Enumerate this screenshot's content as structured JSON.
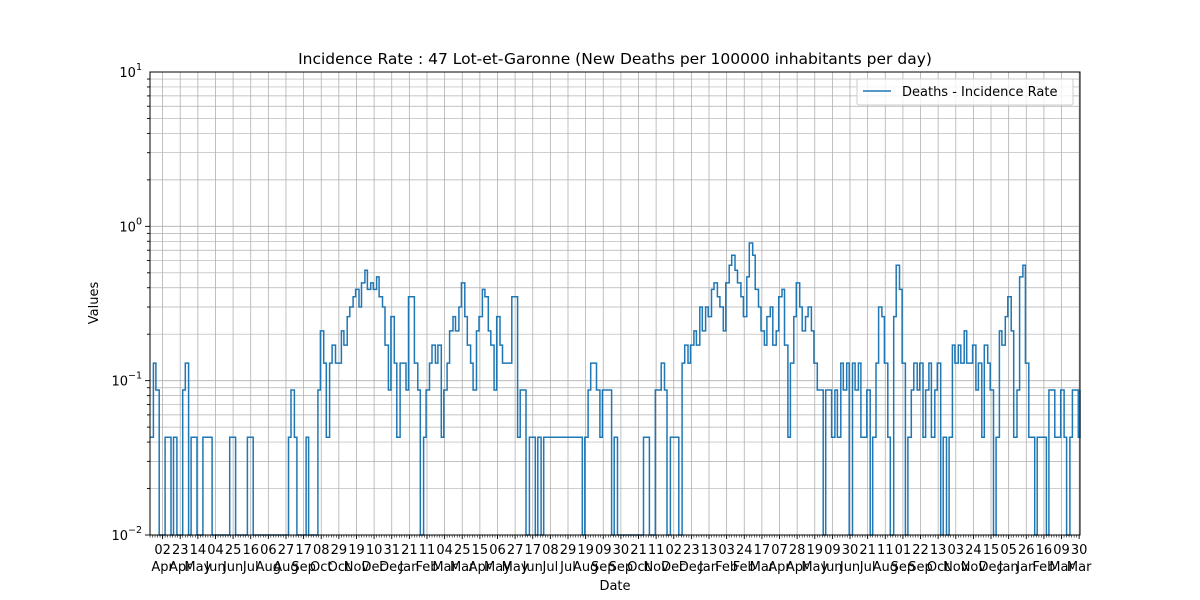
{
  "chart_data": {
    "type": "line",
    "title": "Incidence Rate : 47 Lot-et-Garonne (New Deaths per 100000 inhabitants per day)",
    "xlabel": "Date",
    "ylabel": "Values",
    "yscale": "log",
    "ylim": [
      0.01,
      10
    ],
    "xlim": [
      "2020-03-18",
      "2023-03-31"
    ],
    "grid": true,
    "legend_position": "top-right",
    "line_color": "#1f77b4",
    "y_ticks": [
      {
        "value": 0.01,
        "base": "10",
        "exp": "−2"
      },
      {
        "value": 0.1,
        "base": "10",
        "exp": "−1"
      },
      {
        "value": 1,
        "base": "10",
        "exp": "0"
      },
      {
        "value": 10,
        "base": "10",
        "exp": "1"
      }
    ],
    "x_ticks": [
      {
        "date": "2020-04-02",
        "day": "02",
        "month": "Apr"
      },
      {
        "date": "2020-04-23",
        "day": "23",
        "month": "Apr"
      },
      {
        "date": "2020-05-14",
        "day": "14",
        "month": "May"
      },
      {
        "date": "2020-06-04",
        "day": "04",
        "month": "Jun"
      },
      {
        "date": "2020-06-25",
        "day": "25",
        "month": "Jun"
      },
      {
        "date": "2020-07-16",
        "day": "16",
        "month": "Jul"
      },
      {
        "date": "2020-08-06",
        "day": "06",
        "month": "Aug"
      },
      {
        "date": "2020-08-27",
        "day": "27",
        "month": "Aug"
      },
      {
        "date": "2020-09-17",
        "day": "17",
        "month": "Sep"
      },
      {
        "date": "2020-10-08",
        "day": "08",
        "month": "Oct"
      },
      {
        "date": "2020-10-29",
        "day": "29",
        "month": "Oct"
      },
      {
        "date": "2020-11-19",
        "day": "19",
        "month": "Nov"
      },
      {
        "date": "2020-12-10",
        "day": "10",
        "month": "Dec"
      },
      {
        "date": "2020-12-31",
        "day": "31",
        "month": "Dec"
      },
      {
        "date": "2021-01-21",
        "day": "21",
        "month": "Jan"
      },
      {
        "date": "2021-02-11",
        "day": "11",
        "month": "Feb"
      },
      {
        "date": "2021-03-04",
        "day": "04",
        "month": "Mar"
      },
      {
        "date": "2021-03-25",
        "day": "25",
        "month": "Mar"
      },
      {
        "date": "2021-04-15",
        "day": "15",
        "month": "Apr"
      },
      {
        "date": "2021-05-06",
        "day": "06",
        "month": "May"
      },
      {
        "date": "2021-05-27",
        "day": "27",
        "month": "May"
      },
      {
        "date": "2021-06-17",
        "day": "17",
        "month": "Jun"
      },
      {
        "date": "2021-07-08",
        "day": "08",
        "month": "Jul"
      },
      {
        "date": "2021-07-29",
        "day": "29",
        "month": "Jul"
      },
      {
        "date": "2021-08-19",
        "day": "19",
        "month": "Aug"
      },
      {
        "date": "2021-09-09",
        "day": "09",
        "month": "Sep"
      },
      {
        "date": "2021-09-30",
        "day": "30",
        "month": "Sep"
      },
      {
        "date": "2021-10-21",
        "day": "21",
        "month": "Oct"
      },
      {
        "date": "2021-11-11",
        "day": "11",
        "month": "Nov"
      },
      {
        "date": "2021-12-02",
        "day": "02",
        "month": "Dec"
      },
      {
        "date": "2021-12-23",
        "day": "23",
        "month": "Dec"
      },
      {
        "date": "2022-01-13",
        "day": "13",
        "month": "Jan"
      },
      {
        "date": "2022-02-03",
        "day": "03",
        "month": "Feb"
      },
      {
        "date": "2022-02-24",
        "day": "24",
        "month": "Feb"
      },
      {
        "date": "2022-03-17",
        "day": "17",
        "month": "Mar"
      },
      {
        "date": "2022-04-07",
        "day": "07",
        "month": "Apr"
      },
      {
        "date": "2022-04-28",
        "day": "28",
        "month": "Apr"
      },
      {
        "date": "2022-05-19",
        "day": "19",
        "month": "May"
      },
      {
        "date": "2022-06-09",
        "day": "09",
        "month": "Jun"
      },
      {
        "date": "2022-06-30",
        "day": "30",
        "month": "Jun"
      },
      {
        "date": "2022-07-21",
        "day": "21",
        "month": "Jul"
      },
      {
        "date": "2022-08-11",
        "day": "11",
        "month": "Aug"
      },
      {
        "date": "2022-09-01",
        "day": "01",
        "month": "Sep"
      },
      {
        "date": "2022-09-22",
        "day": "22",
        "month": "Sep"
      },
      {
        "date": "2022-10-13",
        "day": "13",
        "month": "Oct"
      },
      {
        "date": "2022-11-03",
        "day": "03",
        "month": "Nov"
      },
      {
        "date": "2022-11-24",
        "day": "24",
        "month": "Nov"
      },
      {
        "date": "2022-12-15",
        "day": "15",
        "month": "Dec"
      },
      {
        "date": "2023-01-05",
        "day": "05",
        "month": "Jan"
      },
      {
        "date": "2023-01-26",
        "day": "26",
        "month": "Jan"
      },
      {
        "date": "2023-02-16",
        "day": "16",
        "month": "Feb"
      },
      {
        "date": "2023-03-09",
        "day": "09",
        "month": "Mar"
      },
      {
        "date": "2023-03-30",
        "day": "30",
        "month": "Mar"
      }
    ],
    "series": [
      {
        "name": "Deaths - Incidence Rate",
        "x": [
          "2020-03-18",
          "2020-03-22",
          "2020-03-25",
          "2020-03-29",
          "2020-04-05",
          "2020-04-08",
          "2020-04-12",
          "2020-04-15",
          "2020-04-19",
          "2020-04-26",
          "2020-04-29",
          "2020-05-03",
          "2020-05-06",
          "2020-05-10",
          "2020-05-13",
          "2020-05-17",
          "2020-05-20",
          "2020-05-24",
          "2020-05-31",
          "2020-06-21",
          "2020-06-24",
          "2020-06-28",
          "2020-07-12",
          "2020-07-15",
          "2020-07-19",
          "2020-08-30",
          "2020-09-02",
          "2020-09-06",
          "2020-09-09",
          "2020-09-13",
          "2020-09-20",
          "2020-09-23",
          "2020-10-04",
          "2020-10-07",
          "2020-10-11",
          "2020-10-14",
          "2020-10-18",
          "2020-10-21",
          "2020-10-25",
          "2020-10-28",
          "2020-11-01",
          "2020-11-04",
          "2020-11-08",
          "2020-11-11",
          "2020-11-15",
          "2020-11-18",
          "2020-11-22",
          "2020-11-25",
          "2020-11-29",
          "2020-12-02",
          "2020-12-06",
          "2020-12-09",
          "2020-12-13",
          "2020-12-16",
          "2020-12-20",
          "2020-12-23",
          "2020-12-27",
          "2020-12-30",
          "2021-01-03",
          "2021-01-06",
          "2021-01-10",
          "2021-01-13",
          "2021-01-17",
          "2021-01-20",
          "2021-01-24",
          "2021-01-27",
          "2021-01-31",
          "2021-02-03",
          "2021-02-07",
          "2021-02-10",
          "2021-02-14",
          "2021-02-17",
          "2021-02-21",
          "2021-02-24",
          "2021-02-28",
          "2021-03-03",
          "2021-03-07",
          "2021-03-10",
          "2021-03-14",
          "2021-03-17",
          "2021-03-21",
          "2021-03-24",
          "2021-03-28",
          "2021-03-31",
          "2021-04-04",
          "2021-04-07",
          "2021-04-11",
          "2021-04-14",
          "2021-04-18",
          "2021-04-21",
          "2021-04-25",
          "2021-04-28",
          "2021-05-02",
          "2021-05-05",
          "2021-05-09",
          "2021-05-12",
          "2021-05-16",
          "2021-05-19",
          "2021-05-23",
          "2021-05-26",
          "2021-05-30",
          "2021-06-02",
          "2021-06-06",
          "2021-06-09",
          "2021-06-13",
          "2021-06-16",
          "2021-06-20",
          "2021-06-23",
          "2021-06-27",
          "2021-06-30",
          "2021-08-15",
          "2021-08-18",
          "2021-08-22",
          "2021-08-25",
          "2021-08-29",
          "2021-09-01",
          "2021-09-05",
          "2021-09-08",
          "2021-09-12",
          "2021-09-19",
          "2021-09-22",
          "2021-09-26",
          "2021-10-24",
          "2021-10-27",
          "2021-10-31",
          "2021-11-03",
          "2021-11-07",
          "2021-11-10",
          "2021-11-14",
          "2021-11-17",
          "2021-11-21",
          "2021-11-24",
          "2021-11-28",
          "2021-12-01",
          "2021-12-05",
          "2021-12-08",
          "2021-12-12",
          "2021-12-15",
          "2021-12-19",
          "2021-12-22",
          "2021-12-26",
          "2021-12-29",
          "2022-01-02",
          "2022-01-05",
          "2022-01-09",
          "2022-01-12",
          "2022-01-16",
          "2022-01-19",
          "2022-01-23",
          "2022-01-26",
          "2022-01-30",
          "2022-02-02",
          "2022-02-06",
          "2022-02-09",
          "2022-02-13",
          "2022-02-16",
          "2022-02-20",
          "2022-02-23",
          "2022-02-27",
          "2022-03-02",
          "2022-03-06",
          "2022-03-09",
          "2022-03-13",
          "2022-03-16",
          "2022-03-20",
          "2022-03-23",
          "2022-03-27",
          "2022-03-30",
          "2022-04-03",
          "2022-04-06",
          "2022-04-10",
          "2022-04-13",
          "2022-04-17",
          "2022-04-20",
          "2022-04-24",
          "2022-04-27",
          "2022-05-01",
          "2022-05-04",
          "2022-05-08",
          "2022-05-11",
          "2022-05-15",
          "2022-05-18",
          "2022-05-22",
          "2022-05-25",
          "2022-05-29",
          "2022-06-01",
          "2022-06-05",
          "2022-06-08",
          "2022-06-12",
          "2022-06-15",
          "2022-06-19",
          "2022-06-22",
          "2022-06-26",
          "2022-06-29",
          "2022-07-03",
          "2022-07-06",
          "2022-07-10",
          "2022-07-13",
          "2022-07-17",
          "2022-07-20",
          "2022-07-24",
          "2022-07-27",
          "2022-07-31",
          "2022-08-03",
          "2022-08-07",
          "2022-08-10",
          "2022-08-14",
          "2022-08-17",
          "2022-08-21",
          "2022-08-24",
          "2022-08-28",
          "2022-08-31",
          "2022-09-04",
          "2022-09-07",
          "2022-09-11",
          "2022-09-14",
          "2022-09-18",
          "2022-09-21",
          "2022-09-25",
          "2022-09-28",
          "2022-10-02",
          "2022-10-05",
          "2022-10-09",
          "2022-10-12",
          "2022-10-16",
          "2022-10-19",
          "2022-10-23",
          "2022-10-26",
          "2022-10-30",
          "2022-11-02",
          "2022-11-06",
          "2022-11-09",
          "2022-11-13",
          "2022-11-16",
          "2022-11-20",
          "2022-11-23",
          "2022-11-27",
          "2022-11-30",
          "2022-12-04",
          "2022-12-07",
          "2022-12-11",
          "2022-12-14",
          "2022-12-18",
          "2022-12-21",
          "2022-12-25",
          "2022-12-28",
          "2023-01-01",
          "2023-01-04",
          "2023-01-08",
          "2023-01-11",
          "2023-01-15",
          "2023-01-18",
          "2023-01-22",
          "2023-01-25",
          "2023-01-29",
          "2023-02-01",
          "2023-02-05",
          "2023-02-08",
          "2023-02-12",
          "2023-02-15",
          "2023-02-19",
          "2023-02-22",
          "2023-02-26",
          "2023-03-01",
          "2023-03-05",
          "2023-03-08",
          "2023-03-12",
          "2023-03-15",
          "2023-03-19",
          "2023-03-22",
          "2023-03-26",
          "2023-03-29",
          "2023-03-31"
        ],
        "y": [
          0.043,
          0.13,
          0.087,
          0,
          0.043,
          0.043,
          0,
          0.043,
          0,
          0.087,
          0.13,
          0,
          0.043,
          0.043,
          0,
          0,
          0.043,
          0.043,
          0,
          0.043,
          0.043,
          0,
          0.043,
          0.043,
          0,
          0.043,
          0.087,
          0.043,
          0,
          0,
          0.043,
          0,
          0.087,
          0.21,
          0.13,
          0.043,
          0.13,
          0.17,
          0.13,
          0.13,
          0.21,
          0.17,
          0.26,
          0.3,
          0.35,
          0.39,
          0.3,
          0.43,
          0.52,
          0.39,
          0.43,
          0.39,
          0.47,
          0.35,
          0.3,
          0.17,
          0.087,
          0.26,
          0.13,
          0.043,
          0.13,
          0.13,
          0.087,
          0.35,
          0.35,
          0.13,
          0.087,
          0,
          0.043,
          0.087,
          0.13,
          0.17,
          0.13,
          0.17,
          0.043,
          0.087,
          0.13,
          0.21,
          0.26,
          0.21,
          0.3,
          0.43,
          0.26,
          0.17,
          0.13,
          0.087,
          0.21,
          0.26,
          0.39,
          0.35,
          0.21,
          0.17,
          0.087,
          0.26,
          0.17,
          0.13,
          0.13,
          0.13,
          0.35,
          0.35,
          0.043,
          0.087,
          0.087,
          0,
          0.043,
          0.043,
          0,
          0.043,
          0,
          0.043,
          0,
          0.043,
          0.087,
          0.13,
          0.13,
          0.087,
          0.043,
          0.087,
          0.087,
          0,
          0.043,
          0,
          0,
          0.043,
          0.043,
          0,
          0,
          0.087,
          0.087,
          0.13,
          0.087,
          0,
          0.043,
          0.043,
          0.043,
          0,
          0.13,
          0.17,
          0.13,
          0.17,
          0.21,
          0.17,
          0.3,
          0.21,
          0.3,
          0.26,
          0.39,
          0.43,
          0.35,
          0.3,
          0.21,
          0.43,
          0.56,
          0.65,
          0.52,
          0.43,
          0.35,
          0.26,
          0.47,
          0.78,
          0.65,
          0.39,
          0.3,
          0.21,
          0.17,
          0.26,
          0.3,
          0.17,
          0.21,
          0.35,
          0.39,
          0.17,
          0.043,
          0.13,
          0.26,
          0.43,
          0.3,
          0.21,
          0.26,
          0.3,
          0.21,
          0.13,
          0.087,
          0.087,
          0,
          0.087,
          0.087,
          0.043,
          0.087,
          0.043,
          0.13,
          0.087,
          0.13,
          0,
          0.13,
          0.087,
          0.13,
          0.043,
          0.043,
          0.087,
          0,
          0.043,
          0.13,
          0.3,
          0.26,
          0.13,
          0.043,
          0,
          0.26,
          0.56,
          0.39,
          0.13,
          0,
          0.043,
          0.087,
          0.13,
          0.087,
          0.13,
          0.043,
          0.087,
          0.13,
          0.043,
          0.087,
          0.13,
          0,
          0.043,
          0,
          0.043,
          0.17,
          0.13,
          0.17,
          0.13,
          0.21,
          0.13,
          0.13,
          0.17,
          0.087,
          0.13,
          0.043,
          0.17,
          0.13,
          0.087,
          0,
          0.043,
          0.21,
          0.17,
          0.26,
          0.35,
          0.21,
          0.043,
          0.087,
          0.47,
          0.56,
          0.13,
          0.043,
          0.043,
          0,
          0.043,
          0.043,
          0.043,
          0,
          0.087,
          0.087,
          0.043,
          0.043,
          0.087,
          0.043,
          0,
          0.043,
          0.087,
          0.087,
          0.043,
          0.087
        ]
      }
    ]
  }
}
